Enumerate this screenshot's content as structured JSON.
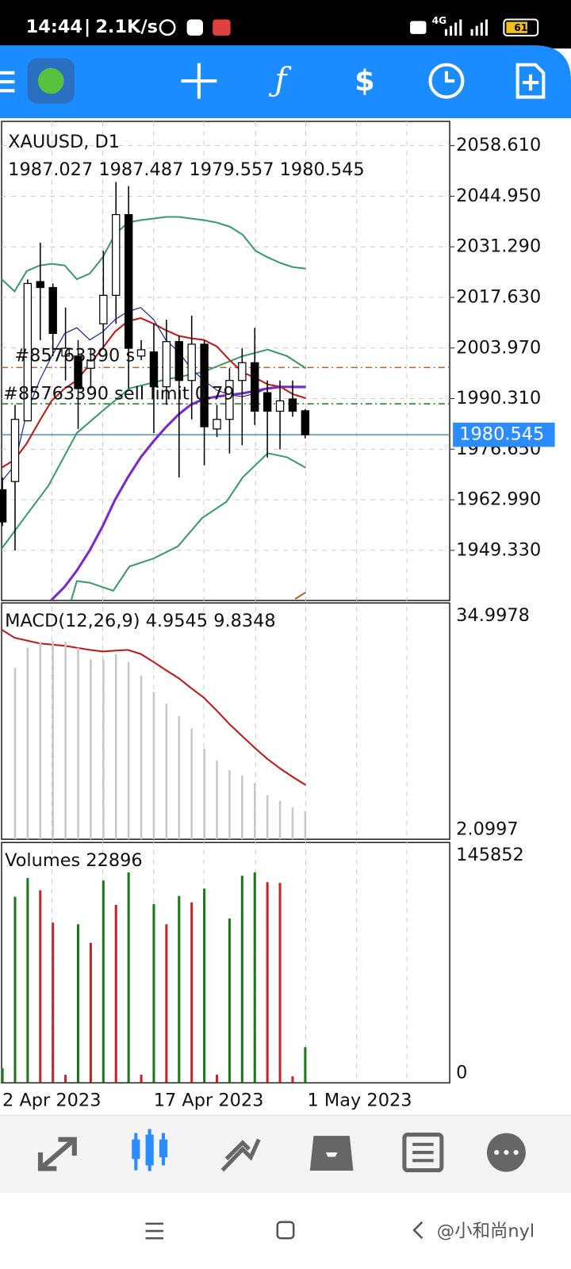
{
  "status_bar": {
    "time": "14:44",
    "speed": "2.1K/s",
    "network": "4G",
    "battery": "61"
  },
  "chart": {
    "symbol": "XAUUSD, D1",
    "ohlc": "1987.027 1987.487 1979.557 1980.545",
    "price_ticks": [
      {
        "value": 2058.61,
        "label": "2058.610"
      },
      {
        "value": 2044.95,
        "label": "2044.950"
      },
      {
        "value": 2031.29,
        "label": "2031.290"
      },
      {
        "value": 2017.63,
        "label": "2017.630"
      },
      {
        "value": 2003.97,
        "label": "2003.970"
      },
      {
        "value": 1990.31,
        "label": "1990.310"
      },
      {
        "value": 1976.65,
        "label": "1976.650"
      },
      {
        "value": 1962.99,
        "label": "1962.990"
      },
      {
        "value": 1949.33,
        "label": "1949.330"
      }
    ],
    "current_price": {
      "value": 1980.545,
      "label": "1980.545"
    },
    "order_1": {
      "label": "#85763390 s",
      "price": 1998.7
    },
    "order_2": {
      "label": "#85763390 sell limit 0.79",
      "price": 1988.9
    },
    "up_color": "#ffffff",
    "down_color": "#000000",
    "candles": [
      {
        "open": 1965.7,
        "high": 1969.0,
        "low": 1955.9,
        "close": 1957.0
      },
      {
        "open": 1967.9,
        "high": 1988.6,
        "low": 1949.3,
        "close": 1984.7
      },
      {
        "open": 1984.3,
        "high": 2022.5,
        "low": 1984.3,
        "close": 2021.4
      },
      {
        "open": 2021.9,
        "high": 2032.4,
        "low": 2006.1,
        "close": 2020.3
      },
      {
        "open": 2020.3,
        "high": 2021.4,
        "low": 2001.8,
        "close": 2007.9
      },
      {
        "open": 2001.8,
        "high": 2014.9,
        "low": 1995.2,
        "close": 2003.9
      },
      {
        "open": 2001.8,
        "high": 2006.1,
        "low": 1982.1,
        "close": 1993.0
      },
      {
        "open": 1998.5,
        "high": 2003.9,
        "low": 1993.0,
        "close": 2000.7
      },
      {
        "open": 2010.5,
        "high": 2030.2,
        "low": 2003.9,
        "close": 2018.2
      },
      {
        "open": 2018.2,
        "high": 2048.8,
        "low": 2010.5,
        "close": 2040.0
      },
      {
        "open": 2040.0,
        "high": 2047.7,
        "low": 1993.0,
        "close": 2003.9
      },
      {
        "open": 2001.8,
        "high": 2006.1,
        "low": 2000.7,
        "close": 2003.5
      },
      {
        "open": 2002.9,
        "high": 2010.5,
        "low": 1981.0,
        "close": 1993.5
      },
      {
        "open": 1993.5,
        "high": 2011.6,
        "low": 1988.6,
        "close": 2005.7
      },
      {
        "open": 2005.7,
        "high": 2007.2,
        "low": 1969.0,
        "close": 1995.2
      },
      {
        "open": 1995.2,
        "high": 2012.7,
        "low": 1984.7,
        "close": 2005.0
      },
      {
        "open": 2005.0,
        "high": 2006.1,
        "low": 1972.3,
        "close": 1982.7
      },
      {
        "open": 1982.1,
        "high": 1988.6,
        "low": 1979.9,
        "close": 1984.7
      },
      {
        "open": 1984.7,
        "high": 1998.5,
        "low": 1975.5,
        "close": 1995.2
      },
      {
        "open": 1995.2,
        "high": 2003.9,
        "low": 1977.7,
        "close": 2000.0
      },
      {
        "open": 2000.0,
        "high": 2009.4,
        "low": 1983.2,
        "close": 1986.9
      },
      {
        "open": 1991.9,
        "high": 1995.2,
        "low": 1974.4,
        "close": 1986.9
      },
      {
        "open": 1986.9,
        "high": 1995.2,
        "low": 1976.6,
        "close": 1989.7
      },
      {
        "open": 1990.2,
        "high": 1995.2,
        "low": 1985.4,
        "close": 1986.9
      },
      {
        "open": 1987.027,
        "high": 1987.487,
        "low": 1979.557,
        "close": 1980.545
      }
    ],
    "macd": {
      "label": "MACD(12,26,9) 4.9545 9.8348",
      "top": {
        "value": 34.9978,
        "label": "34.9978"
      },
      "bottom": {
        "value": 2.0997,
        "label": "2.0997"
      },
      "color": "#c8c8c8",
      "histogram": [
        null,
        26.9,
        30.0,
        30.9,
        31.0,
        30.9,
        30.0,
        28.2,
        28.2,
        29.0,
        27.8,
        25.7,
        23.2,
        21.4,
        19.5,
        17.6,
        14.5,
        12.7,
        11.2,
        10.4,
        9.2,
        7.4,
        6.5,
        5.5,
        4.9545
      ]
    },
    "volumes": {
      "label": "Volumes 22896",
      "top": 145852,
      "bottom": 0,
      "up_color": "#1a7a1a",
      "down_color": "#c0262d",
      "values": [
        9342,
        119370,
        131307,
        123522,
        102762,
        5190,
        101724,
        89787,
        129750,
        114180,
        134940,
        5190,
        114699,
        101724,
        119889,
        115737,
        124560,
        5190,
        105357,
        132864,
        134940,
        128712,
        128193,
        4152,
        22896
      ]
    },
    "dates": [
      "2 Apr 2023",
      "17 Apr 2023",
      "1 May 2023"
    ]
  },
  "watermark": "@小和尚nyl"
}
